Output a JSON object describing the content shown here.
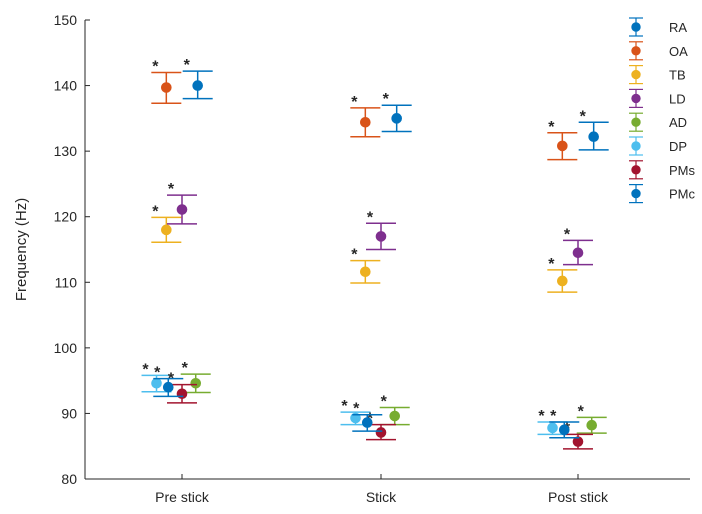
{
  "chart_data": {
    "type": "scatter",
    "subtype": "errorbar",
    "title": "",
    "xlabel": "",
    "ylabel": "Frequency (Hz)",
    "categories": [
      "Pre stick",
      "Stick",
      "Post stick"
    ],
    "ylim": [
      80,
      150
    ],
    "yticks": [
      80,
      90,
      100,
      110,
      120,
      130,
      140,
      150
    ],
    "grid": false,
    "legend_position": "top-right",
    "significance_marker": "*",
    "series": [
      {
        "name": "RA",
        "color": "#0072BD",
        "values": [
          140.0,
          135.0,
          132.2
        ],
        "lower": [
          138.0,
          133.0,
          130.2
        ],
        "upper": [
          142.2,
          137.0,
          134.4
        ],
        "marked": [
          true,
          true,
          true
        ]
      },
      {
        "name": "OA",
        "color": "#D95319",
        "values": [
          139.7,
          134.4,
          130.8
        ],
        "lower": [
          137.3,
          132.2,
          128.7
        ],
        "upper": [
          142.0,
          136.6,
          132.8
        ],
        "marked": [
          true,
          true,
          true
        ]
      },
      {
        "name": "TB",
        "color": "#EDB120",
        "values": [
          118.0,
          111.6,
          110.2
        ],
        "lower": [
          116.1,
          109.9,
          108.5
        ],
        "upper": [
          119.9,
          113.3,
          111.9
        ],
        "marked": [
          true,
          true,
          true
        ]
      },
      {
        "name": "LD",
        "color": "#7E2F8E",
        "values": [
          121.1,
          117.0,
          114.5
        ],
        "lower": [
          118.9,
          115.0,
          112.7
        ],
        "upper": [
          123.3,
          119.0,
          116.4
        ],
        "marked": [
          true,
          true,
          true
        ]
      },
      {
        "name": "AD",
        "color": "#77AC30",
        "values": [
          94.6,
          89.6,
          88.2
        ],
        "lower": [
          93.2,
          88.3,
          87.0
        ],
        "upper": [
          96.0,
          90.9,
          89.4
        ],
        "marked": [
          true,
          true,
          true
        ]
      },
      {
        "name": "DP",
        "color": "#4DBEEE",
        "values": [
          94.6,
          89.3,
          87.8
        ],
        "lower": [
          93.3,
          88.3,
          86.8
        ],
        "upper": [
          95.8,
          90.2,
          88.7
        ],
        "marked": [
          true,
          true,
          true
        ]
      },
      {
        "name": "PMs",
        "color": "#A2142F",
        "values": [
          93.0,
          87.1,
          85.7
        ],
        "lower": [
          91.6,
          86.0,
          84.6
        ],
        "upper": [
          94.4,
          88.3,
          86.8
        ],
        "marked": [
          true,
          true,
          true
        ]
      },
      {
        "name": "PMc",
        "color": "#0072BD",
        "values": [
          94.0,
          88.6,
          87.5
        ],
        "lower": [
          92.6,
          87.3,
          86.3
        ],
        "upper": [
          95.3,
          89.8,
          88.7
        ],
        "marked": [
          true,
          true,
          true
        ]
      }
    ],
    "placement": {
      "Pre stick": {
        "RA": 0.08,
        "OA": -0.08,
        "TB": -0.08,
        "LD": 0.0,
        "AD": 0.07,
        "DP": -0.13,
        "PMs": 0.0,
        "PMc": -0.07
      },
      "Stick": {
        "RA": 0.08,
        "OA": -0.08,
        "TB": -0.08,
        "LD": 0.0,
        "AD": 0.07,
        "DP": -0.13,
        "PMs": 0.0,
        "PMc": -0.07
      },
      "Post stick": {
        "RA": 0.08,
        "OA": -0.08,
        "TB": -0.08,
        "LD": 0.0,
        "AD": 0.07,
        "DP": -0.13,
        "PMs": 0.0,
        "PMc": -0.07
      }
    }
  }
}
